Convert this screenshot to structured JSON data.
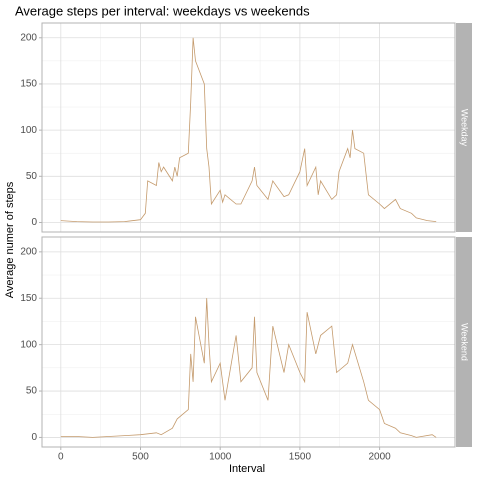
{
  "chart_data": {
    "type": "line",
    "title": "Average steps per interval: weekdays vs weekends",
    "xlabel": "Interval",
    "ylabel": "Average numer of steps",
    "xlim": [
      -118,
      2473
    ],
    "ylim": [
      -10.3,
      216
    ],
    "xticks": [
      0,
      500,
      1000,
      1500,
      2000
    ],
    "yticks": [
      0,
      50,
      100,
      150,
      200
    ],
    "grid": true,
    "series": [
      {
        "name": "Weekday",
        "color": "#c49a6c",
        "x": [
          0,
          100,
          200,
          300,
          400,
          500,
          530,
          545,
          600,
          615,
          630,
          645,
          700,
          715,
          730,
          745,
          800,
          815,
          830,
          845,
          900,
          915,
          930,
          945,
          1000,
          1015,
          1030,
          1100,
          1130,
          1200,
          1215,
          1230,
          1300,
          1330,
          1400,
          1430,
          1500,
          1530,
          1545,
          1600,
          1615,
          1630,
          1700,
          1730,
          1745,
          1800,
          1815,
          1830,
          1845,
          1900,
          1930,
          2000,
          2030,
          2100,
          2130,
          2200,
          2230,
          2300,
          2355
        ],
        "values": [
          2,
          1,
          0.5,
          0.5,
          1,
          3,
          10,
          45,
          40,
          65,
          55,
          60,
          45,
          60,
          50,
          70,
          75,
          130,
          200,
          175,
          150,
          80,
          60,
          20,
          35,
          22,
          30,
          20,
          20,
          45,
          60,
          40,
          25,
          45,
          28,
          30,
          55,
          80,
          40,
          60,
          30,
          45,
          25,
          30,
          55,
          80,
          70,
          100,
          80,
          75,
          30,
          20,
          15,
          25,
          15,
          10,
          5,
          2,
          1
        ]
      },
      {
        "name": "Weekend",
        "color": "#c49a6c",
        "x": [
          0,
          100,
          200,
          400,
          500,
          600,
          630,
          700,
          730,
          800,
          815,
          830,
          845,
          900,
          915,
          930,
          945,
          1000,
          1030,
          1100,
          1130,
          1200,
          1215,
          1230,
          1300,
          1330,
          1400,
          1430,
          1500,
          1530,
          1545,
          1600,
          1630,
          1700,
          1730,
          1800,
          1830,
          1900,
          1930,
          2000,
          2030,
          2100,
          2130,
          2200,
          2230,
          2330,
          2355
        ],
        "values": [
          1,
          1,
          0,
          2,
          3,
          5,
          3,
          10,
          20,
          30,
          90,
          60,
          130,
          80,
          150,
          100,
          60,
          80,
          40,
          110,
          60,
          75,
          130,
          70,
          40,
          120,
          70,
          100,
          70,
          60,
          135,
          90,
          110,
          120,
          70,
          80,
          100,
          60,
          40,
          30,
          15,
          10,
          5,
          2,
          0,
          3,
          0
        ]
      }
    ]
  }
}
